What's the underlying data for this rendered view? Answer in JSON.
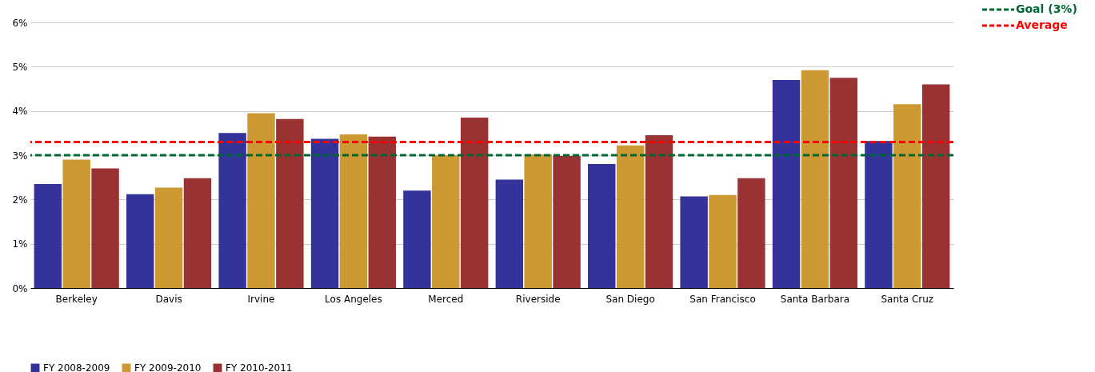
{
  "chart_data": {
    "type": "bar",
    "categories": [
      "Berkeley",
      "Davis",
      "Irvine",
      "Los Angeles",
      "Merced",
      "Riverside",
      "San Diego",
      "San Francisco",
      "Santa Barbara",
      "Santa Cruz"
    ],
    "series": [
      {
        "name": "FY 2008-2009",
        "color": "#333399",
        "values": [
          2.35,
          2.12,
          3.5,
          3.37,
          2.2,
          2.45,
          2.8,
          2.07,
          4.7,
          3.32
        ]
      },
      {
        "name": "FY 2009-2010",
        "color": "#cc9933",
        "values": [
          2.9,
          2.27,
          3.95,
          3.47,
          3.0,
          3.02,
          3.22,
          2.1,
          4.92,
          4.15
        ]
      },
      {
        "name": "FY 2010-2011",
        "color": "#993333",
        "values": [
          2.7,
          2.48,
          3.82,
          3.42,
          3.85,
          2.98,
          3.45,
          2.48,
          4.75,
          4.6
        ]
      }
    ],
    "ylim": [
      0,
      6
    ],
    "yticks": [
      {
        "value": 0,
        "label": "0%"
      },
      {
        "value": 1,
        "label": "1%"
      },
      {
        "value": 2,
        "label": "2%"
      },
      {
        "value": 3,
        "label": "3%"
      },
      {
        "value": 4,
        "label": "4%"
      },
      {
        "value": 5,
        "label": "5%"
      },
      {
        "value": 6,
        "label": "6%"
      }
    ],
    "ref_lines": [
      {
        "axis": "y",
        "value": 3,
        "label": "Goal (3%)",
        "color": "#006633",
        "line_style": "dashed"
      },
      {
        "axis": "y",
        "value": 3.3,
        "label": "Average",
        "color": "#ff0000",
        "line_style": "dashed"
      }
    ],
    "grid": "y",
    "legend": "bottom"
  }
}
